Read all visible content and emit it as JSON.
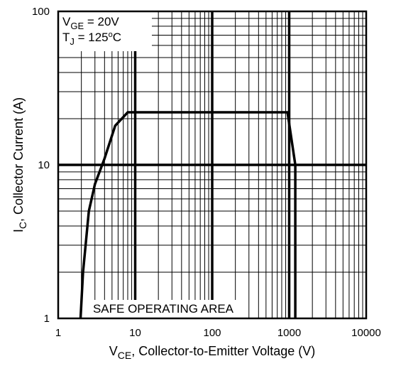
{
  "chart_data": {
    "type": "line",
    "x_scale": "log",
    "y_scale": "log",
    "xlim": [
      1,
      10000
    ],
    "ylim": [
      1,
      100
    ],
    "x_ticks": [
      "1",
      "10",
      "100",
      "1000",
      "10000"
    ],
    "y_ticks": [
      "1",
      "10",
      "100"
    ],
    "xlabel": {
      "main": "V",
      "sub": "CE",
      "rest": ", Collector-to-Emitter Voltage (V)"
    },
    "ylabel": {
      "main": "I",
      "sub": "C",
      "rest": ",  Collector Current (A)"
    },
    "conditions": [
      {
        "main": "V",
        "sub": "GE",
        "rest": " = 20V"
      },
      {
        "main": "T",
        "sub": "J",
        "rest": "  = 125",
        "degree": "o",
        "unit": "C"
      }
    ],
    "annotation": "SAFE OPERATING AREA",
    "grid": true,
    "series": [
      {
        "x": [
          1.95,
          2.1,
          2.5,
          3.0,
          4.0,
          5.5,
          8.0,
          950,
          1200,
          1200
        ],
        "y": [
          1,
          2,
          5,
          7.5,
          11,
          18,
          22,
          22,
          10,
          1
        ]
      }
    ]
  }
}
